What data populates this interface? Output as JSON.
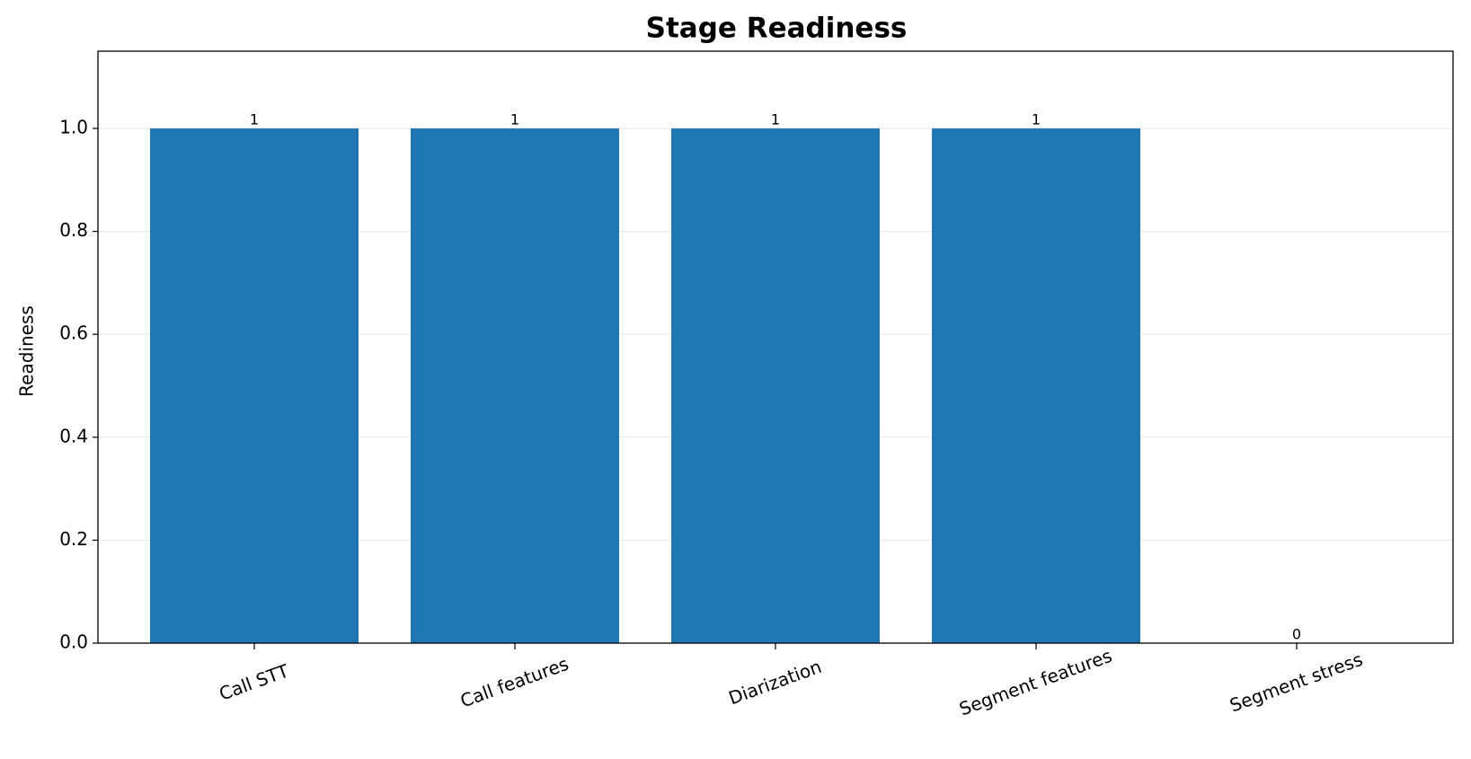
{
  "chart_data": {
    "type": "bar",
    "title": "Stage Readiness",
    "y_label": "Readiness",
    "categories": [
      "Call STT",
      "Call features",
      "Diarization",
      "Segment features",
      "Segment stress"
    ],
    "values": [
      1,
      1,
      1,
      1,
      0
    ],
    "color": "#1f77b4",
    "ylim": [
      0,
      1.15
    ],
    "yticks": [
      {
        "value": 0,
        "label": "0.0"
      },
      0.2,
      0.4,
      0.6,
      0.8,
      {
        "value": 1,
        "label": "1.0"
      }
    ],
    "grid": true
  }
}
